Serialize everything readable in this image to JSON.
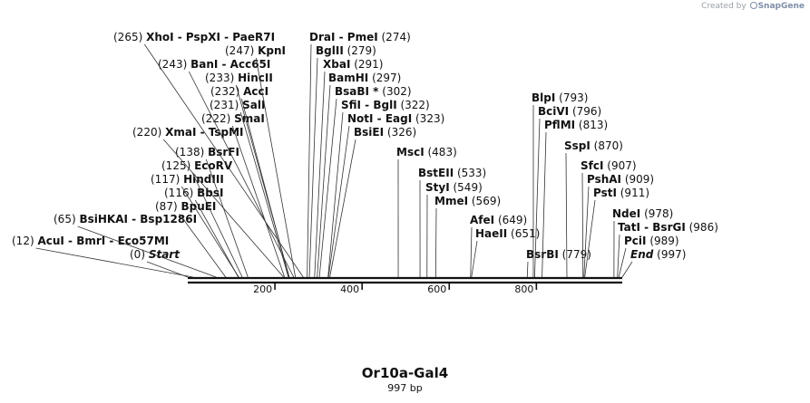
{
  "credit": {
    "prefix": "Created by",
    "brand": "SnapGene"
  },
  "title": "Or10a-Gal4",
  "subtitle": "997 bp",
  "sequence_length": 997,
  "axis_ticks": [
    {
      "value": 200,
      "label": "200"
    },
    {
      "value": 400,
      "label": "400"
    },
    {
      "value": 600,
      "label": "600"
    },
    {
      "value": 800,
      "label": "800"
    }
  ],
  "sites": [
    {
      "num": "(12)",
      "names": [
        "AcuI",
        "BmrI",
        "Eco57MI"
      ],
      "pos": 12
    },
    {
      "num": "(0)",
      "names": [
        "Start"
      ],
      "pos": 0,
      "italic": true
    },
    {
      "num": "(65)",
      "names": [
        "BsiHKAI",
        "Bsp1286I"
      ],
      "pos": 65
    },
    {
      "num": "(87)",
      "names": [
        "BpuEI"
      ],
      "pos": 87
    },
    {
      "num": "(116)",
      "names": [
        "BbsI"
      ],
      "pos": 116
    },
    {
      "num": "(117)",
      "names": [
        "HindIII"
      ],
      "pos": 117
    },
    {
      "num": "(125)",
      "names": [
        "EcoRV"
      ],
      "pos": 125
    },
    {
      "num": "(138)",
      "names": [
        "BsrFI"
      ],
      "pos": 138
    },
    {
      "num": "(220)",
      "names": [
        "XmaI",
        "TspMI"
      ],
      "pos": 220
    },
    {
      "num": "(222)",
      "names": [
        "SmaI"
      ],
      "pos": 222
    },
    {
      "num": "(231)",
      "names": [
        "SalI"
      ],
      "pos": 231
    },
    {
      "num": "(232)",
      "names": [
        "AccI"
      ],
      "pos": 232
    },
    {
      "num": "(233)",
      "names": [
        "HincII"
      ],
      "pos": 233
    },
    {
      "num": "(243)",
      "names": [
        "BanI",
        "Acc65I"
      ],
      "pos": 243
    },
    {
      "num": "(247)",
      "names": [
        "KpnI"
      ],
      "pos": 247
    },
    {
      "num": "(265)",
      "names": [
        "XhoI",
        "PspXI",
        "PaeR7I"
      ],
      "pos": 265
    },
    {
      "num": "(274)",
      "names": [
        "DraI",
        "PmeI"
      ],
      "pos": 274
    },
    {
      "num": "(279)",
      "names": [
        "BglII"
      ],
      "pos": 279
    },
    {
      "num": "(291)",
      "names": [
        "XbaI"
      ],
      "pos": 291
    },
    {
      "num": "(297)",
      "names": [
        "BamHI"
      ],
      "pos": 297
    },
    {
      "num": "(302)",
      "names": [
        "BsaBI *"
      ],
      "pos": 302
    },
    {
      "num": "(322)",
      "names": [
        "SfiI",
        "BglI"
      ],
      "pos": 322
    },
    {
      "num": "(323)",
      "names": [
        "NotI",
        "EagI"
      ],
      "pos": 323
    },
    {
      "num": "(326)",
      "names": [
        "BsiEI"
      ],
      "pos": 326
    },
    {
      "num": "(483)",
      "names": [
        "MscI"
      ],
      "pos": 483
    },
    {
      "num": "(533)",
      "names": [
        "BstEII"
      ],
      "pos": 533
    },
    {
      "num": "(549)",
      "names": [
        "StyI"
      ],
      "pos": 549
    },
    {
      "num": "(569)",
      "names": [
        "MmeI"
      ],
      "pos": 569
    },
    {
      "num": "(649)",
      "names": [
        "AfeI"
      ],
      "pos": 649
    },
    {
      "num": "(651)",
      "names": [
        "HaeII"
      ],
      "pos": 651
    },
    {
      "num": "(779)",
      "names": [
        "BsrBI"
      ],
      "pos": 779
    },
    {
      "num": "(793)",
      "names": [
        "BlpI"
      ],
      "pos": 793
    },
    {
      "num": "(796)",
      "names": [
        "BciVI"
      ],
      "pos": 796
    },
    {
      "num": "(813)",
      "names": [
        "PflMI"
      ],
      "pos": 813
    },
    {
      "num": "(870)",
      "names": [
        "SspI"
      ],
      "pos": 870
    },
    {
      "num": "(907)",
      "names": [
        "SfcI"
      ],
      "pos": 907
    },
    {
      "num": "(909)",
      "names": [
        "PshAI"
      ],
      "pos": 909
    },
    {
      "num": "(911)",
      "names": [
        "PstI"
      ],
      "pos": 911
    },
    {
      "num": "(978)",
      "names": [
        "NdeI"
      ],
      "pos": 978
    },
    {
      "num": "(986)",
      "names": [
        "TatI",
        "BsrGI"
      ],
      "pos": 986
    },
    {
      "num": "(989)",
      "names": [
        "PciI"
      ],
      "pos": 989
    },
    {
      "num": "(997)",
      "names": [
        "End"
      ],
      "pos": 997,
      "italic": true
    }
  ]
}
